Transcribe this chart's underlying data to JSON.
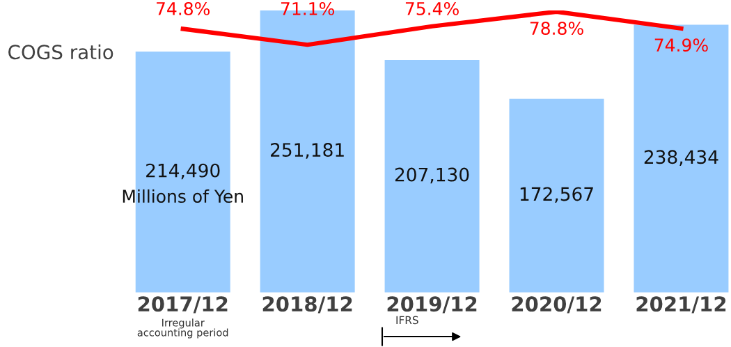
{
  "chart_data": {
    "type": "bar",
    "categories": [
      "2017/12",
      "2018/12",
      "2019/12",
      "2020/12",
      "2021/12"
    ],
    "series": [
      {
        "color": "#99ccff",
        "values": [
          214490,
          251181,
          207130,
          172567,
          238434
        ],
        "value_labels": [
          "214,490",
          "251,181",
          "207,130",
          "172,567",
          "238,434"
        ]
      },
      {
        "type": "line",
        "name": "COGS ratio",
        "axis": "y2",
        "color": "#ff0000",
        "marker": "none",
        "line_style": "solid",
        "values": [
          74.8,
          71.1,
          75.4,
          78.8,
          74.9
        ],
        "value_labels": [
          "74.8%",
          "71.1%",
          "75.4%",
          "78.8%",
          "74.9%"
        ]
      }
    ],
    "data_labels": true,
    "annotations": [
      "Millions of Yen",
      "Irregular\naccounting period",
      "IFRS"
    ],
    "grid": false,
    "legend": false,
    "tick_labels": "x"
  }
}
